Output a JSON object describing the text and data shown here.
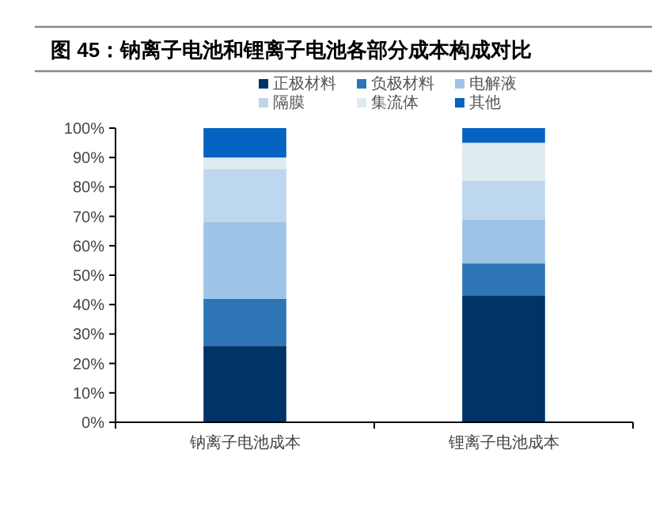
{
  "chart_data": {
    "type": "bar",
    "stacked": true,
    "title": "图 45：钠离子电池和锂离子电池各部分成本构成对比",
    "categories": [
      "钠离子电池成本",
      "锂离子电池成本"
    ],
    "series": [
      {
        "name": "正极材料",
        "color": "#003366",
        "values": [
          26,
          43
        ]
      },
      {
        "name": "负极材料",
        "color": "#2e75b6",
        "values": [
          16,
          11
        ]
      },
      {
        "name": "电解液",
        "color": "#9dc3e6",
        "values": [
          26,
          15
        ]
      },
      {
        "name": "隔膜",
        "color": "#bdd7ee",
        "values": [
          18,
          13
        ]
      },
      {
        "name": "集流体",
        "color": "#deebf0",
        "values": [
          4,
          13
        ]
      },
      {
        "name": "其他",
        "color": "#0563c1",
        "values": [
          10,
          5
        ]
      }
    ],
    "ylim": [
      0,
      100
    ],
    "yticks": [
      {
        "value": 0,
        "label": "0%"
      },
      {
        "value": 10,
        "label": "10%"
      },
      {
        "value": 20,
        "label": "20%"
      },
      {
        "value": 30,
        "label": "30%"
      },
      {
        "value": 40,
        "label": "40%"
      },
      {
        "value": 50,
        "label": "50%"
      },
      {
        "value": 60,
        "label": "60%"
      },
      {
        "value": 70,
        "label": "70%"
      },
      {
        "value": 80,
        "label": "80%"
      },
      {
        "value": 90,
        "label": "90%"
      },
      {
        "value": 100,
        "label": "100%"
      }
    ],
    "grid": false,
    "legend": "top"
  }
}
